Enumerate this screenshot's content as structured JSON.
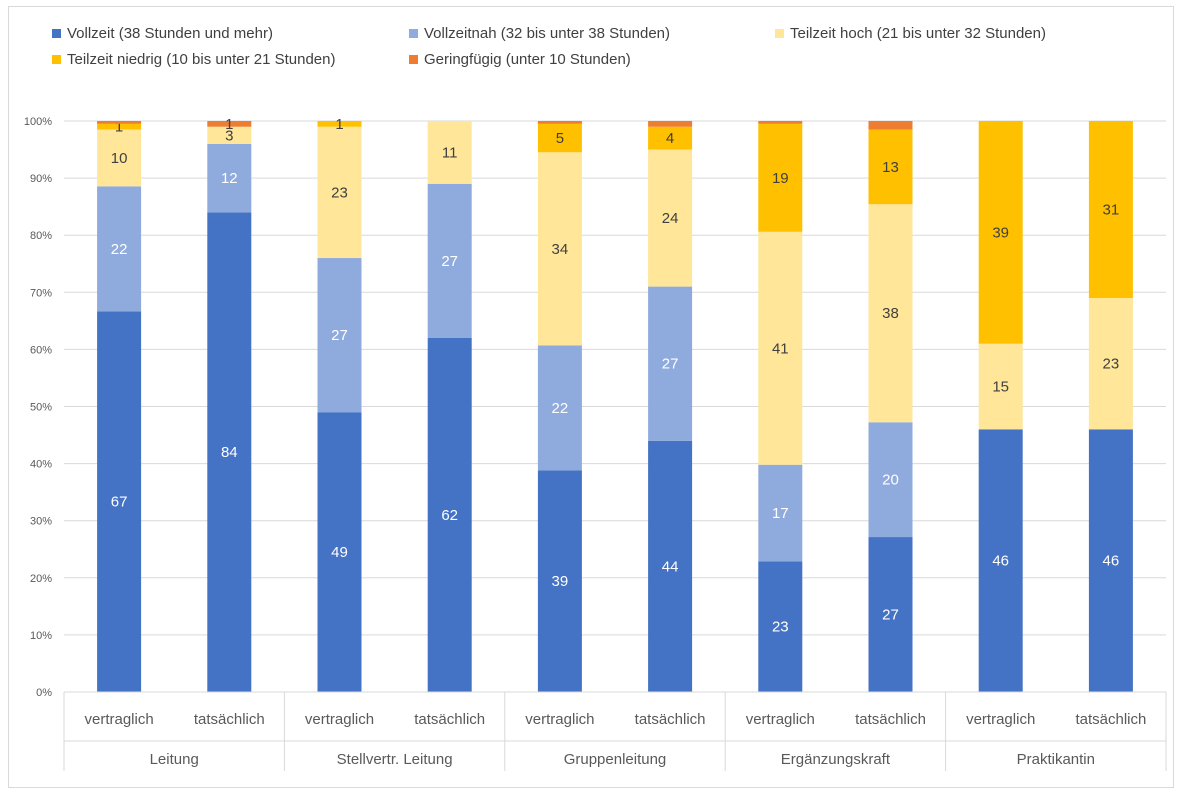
{
  "chart_data": {
    "type": "bar",
    "stacked": true,
    "percent_stacked": true,
    "groups": [
      {
        "label": "Leitung",
        "categories": [
          "vertraglich",
          "tatsächlich"
        ]
      },
      {
        "label": "Stellvertr. Leitung",
        "categories": [
          "vertraglich",
          "tatsächlich"
        ]
      },
      {
        "label": "Gruppenleitung",
        "categories": [
          "vertraglich",
          "tatsächlich"
        ]
      },
      {
        "label": "Ergänzungskraft",
        "categories": [
          "vertraglich",
          "tatsächlich"
        ]
      },
      {
        "label": "Praktikantin",
        "categories": [
          "vertraglich",
          "tatsächlich"
        ]
      }
    ],
    "series": [
      {
        "name": "Vollzeit (38 Stunden und mehr)",
        "color": "#4472c4",
        "label_color": "#ffffff",
        "values": [
          67,
          84,
          49,
          62,
          39,
          44,
          23,
          27,
          46,
          46
        ]
      },
      {
        "name": "Vollzeitnah (32 bis unter 38 Stunden)",
        "color": "#8faadc",
        "label_color": "#ffffff",
        "values": [
          22,
          12,
          27,
          27,
          22,
          27,
          17,
          20,
          0,
          0
        ]
      },
      {
        "name": "Teilzeit hoch (21 bis unter 32 Stunden)",
        "color": "#ffe699",
        "label_color": "#404040",
        "values": [
          10,
          3,
          23,
          11,
          34,
          24,
          41,
          38,
          15,
          23
        ]
      },
      {
        "name": "Teilzeit niedrig (10 bis unter 21 Stunden)",
        "color": "#ffc000",
        "label_color": "#404040",
        "values": [
          1,
          0,
          1,
          0,
          5,
          4,
          19,
          13,
          39,
          31
        ]
      },
      {
        "name": "Geringfügig (unter 10 Stunden)",
        "color": "#ed7d31",
        "label_color": "#404040",
        "values": [
          0.5,
          1,
          0,
          0,
          0.5,
          1,
          0.5,
          1.5,
          0,
          0
        ]
      }
    ],
    "labels_shown": [
      [
        true,
        true,
        true,
        true,
        true,
        true,
        true,
        true,
        true,
        true
      ],
      [
        true,
        true,
        true,
        true,
        true,
        true,
        true,
        true,
        false,
        false
      ],
      [
        true,
        true,
        true,
        true,
        true,
        true,
        true,
        true,
        true,
        true
      ],
      [
        true,
        false,
        true,
        false,
        true,
        true,
        true,
        true,
        true,
        true
      ],
      [
        false,
        true,
        false,
        false,
        false,
        false,
        false,
        false,
        false,
        false
      ]
    ],
    "ylim": [
      0,
      100
    ],
    "yticks": [
      "0%",
      "10%",
      "20%",
      "30%",
      "40%",
      "50%",
      "60%",
      "70%",
      "80%",
      "90%",
      "100%"
    ],
    "grid": true,
    "legend_position": "top"
  }
}
